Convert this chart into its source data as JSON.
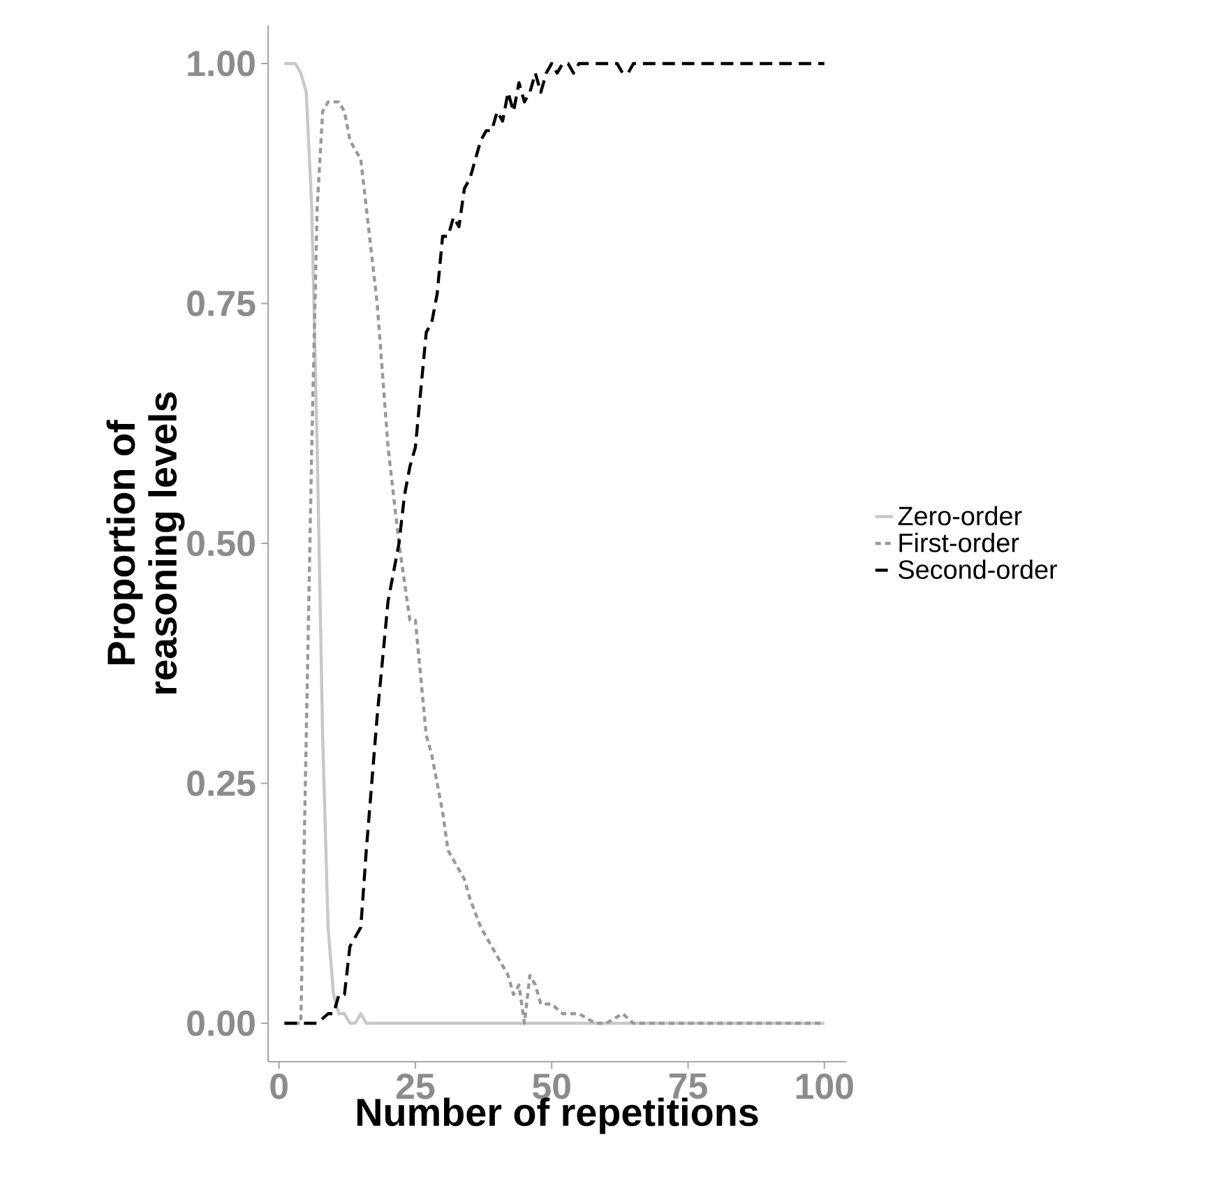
{
  "chart_data": {
    "type": "line",
    "xlabel": "Number of repetitions",
    "ylabel": "Proportion of\nreasoning levels",
    "xlim": [
      -2,
      104
    ],
    "ylim": [
      -0.04,
      1.04
    ],
    "xticks": [
      0,
      25,
      50,
      75,
      100
    ],
    "yticks": [
      {
        "value": 0,
        "label": "0.00"
      },
      {
        "value": 0.25,
        "label": "0.25"
      },
      {
        "value": 0.5,
        "label": "0.50"
      },
      {
        "value": 0.75,
        "label": "0.75"
      },
      {
        "value": 1,
        "label": "1.00"
      }
    ],
    "grid": false,
    "legend": "right",
    "series": [
      {
        "name": "Zero-order",
        "color": "#c8c8c8",
        "line_style": "solid",
        "x": [
          1,
          2,
          3,
          4,
          5,
          6,
          7,
          8,
          9,
          10,
          11,
          12,
          13,
          14,
          15,
          16,
          18,
          20,
          30,
          50,
          100
        ],
        "values": [
          1,
          1,
          1,
          0.99,
          0.97,
          0.85,
          0.6,
          0.3,
          0.1,
          0.03,
          0.01,
          0.01,
          0.0,
          0.0,
          0.01,
          0.0,
          0,
          0,
          0,
          0,
          0
        ]
      },
      {
        "name": "First-order",
        "color": "#999999",
        "line_style": "dotted",
        "x": [
          1,
          2,
          3,
          4,
          5,
          6,
          7,
          8,
          9,
          10,
          11,
          12,
          13,
          15,
          17,
          18,
          20,
          22,
          24,
          25,
          27,
          28,
          30,
          31,
          32,
          34,
          35,
          37,
          38,
          40,
          41,
          42,
          43,
          44,
          45,
          46,
          47,
          48,
          50,
          52,
          55,
          58,
          60,
          63,
          65,
          68,
          70,
          80,
          90,
          100
        ],
        "values": [
          0,
          0,
          0,
          0,
          0.3,
          0.6,
          0.85,
          0.95,
          0.96,
          0.96,
          0.96,
          0.95,
          0.92,
          0.9,
          0.8,
          0.75,
          0.6,
          0.5,
          0.42,
          0.42,
          0.3,
          0.28,
          0.22,
          0.18,
          0.17,
          0.15,
          0.13,
          0.1,
          0.09,
          0.07,
          0.06,
          0.05,
          0.03,
          0.04,
          0.0,
          0.05,
          0.04,
          0.02,
          0.02,
          0.01,
          0.01,
          0.0,
          0.0,
          0.01,
          0.0,
          0.0,
          0,
          0,
          0,
          0
        ]
      },
      {
        "name": "Second-order",
        "color": "#000000",
        "line_style": "dashed",
        "x": [
          1,
          3,
          5,
          7,
          9,
          10,
          11,
          12,
          13,
          14,
          15,
          16,
          17,
          18,
          19,
          20,
          21,
          22,
          23,
          24,
          25,
          26,
          27,
          28,
          29,
          30,
          31,
          32,
          33,
          34,
          35,
          36,
          37,
          38,
          39,
          40,
          41,
          42,
          43,
          44,
          45,
          46,
          47,
          48,
          49,
          50,
          51,
          52,
          53,
          54,
          55,
          58,
          60,
          62,
          63,
          64,
          65,
          66,
          70,
          80,
          90,
          100
        ],
        "values": [
          0,
          0,
          0,
          0,
          0.01,
          0.01,
          0.03,
          0.03,
          0.08,
          0.09,
          0.1,
          0.18,
          0.25,
          0.32,
          0.38,
          0.44,
          0.47,
          0.5,
          0.55,
          0.58,
          0.6,
          0.66,
          0.72,
          0.73,
          0.76,
          0.82,
          0.82,
          0.84,
          0.83,
          0.87,
          0.88,
          0.9,
          0.92,
          0.93,
          0.93,
          0.95,
          0.94,
          0.97,
          0.95,
          0.98,
          0.96,
          0.97,
          0.99,
          0.97,
          0.99,
          1.0,
          0.99,
          1.0,
          1.0,
          0.99,
          1.0,
          1.0,
          1.0,
          1.0,
          0.99,
          0.99,
          1.0,
          1.0,
          1.0,
          1.0,
          1.0,
          1.0
        ]
      }
    ]
  }
}
